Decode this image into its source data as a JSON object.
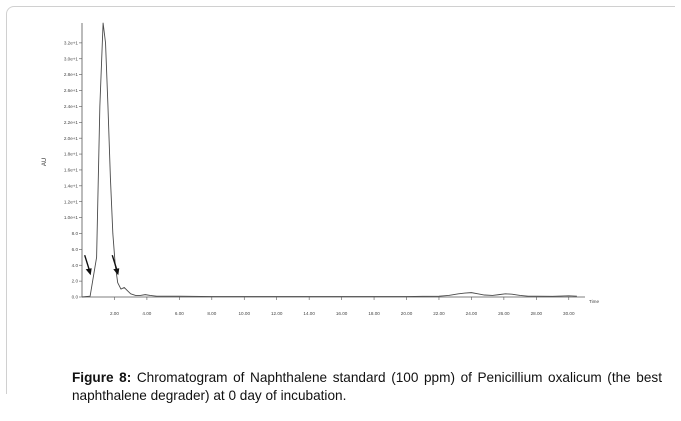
{
  "figure": {
    "label": "Figure 8:",
    "text": " Chromatogram of Naphthalene standard (100 ppm) of Penicillium oxalicum (the best naphthalene degrader) at 0 day of incubation."
  },
  "chart_data": {
    "type": "line",
    "ylabel": "AU",
    "xlabel": "Time",
    "xlim": [
      0,
      31
    ],
    "ylim": [
      0,
      3.4
    ],
    "x_ticks": [
      "2.00",
      "4.00",
      "6.00",
      "8.00",
      "10.00",
      "12.00",
      "14.00",
      "16.00",
      "18.00",
      "20.00",
      "22.00",
      "24.00",
      "26.00",
      "28.00",
      "30.00"
    ],
    "y_ticks": [
      "0.0",
      "2.0",
      "4.0",
      "6.0",
      "8.0",
      "1.0e+1",
      "1.2e+1",
      "1.4e+1",
      "1.6e+1",
      "1.8e+1",
      "2.0e+1",
      "2.2e+1",
      "2.4e+1",
      "2.6e+1",
      "2.8e+1",
      "3.0e+1",
      "3.2e+1"
    ],
    "series": [
      {
        "x": [
          0,
          0.5,
          0.9,
          1.1,
          1.3,
          1.45,
          1.6,
          1.75,
          1.9,
          2.05,
          2.2,
          2.4,
          2.6,
          2.8,
          3.0,
          3.3,
          3.6,
          3.9,
          4.2,
          4.6,
          5,
          6,
          8,
          10,
          12,
          14,
          16,
          18,
          20,
          21,
          22,
          22.6,
          23.2,
          23.6,
          24,
          24.4,
          24.8,
          25.3,
          25.7,
          26.1,
          26.5,
          27,
          27.5,
          28,
          29,
          30,
          30.5
        ],
        "y": [
          0,
          0.01,
          0.5,
          2.4,
          3.45,
          3.2,
          2.4,
          1.5,
          0.8,
          0.4,
          0.18,
          0.1,
          0.12,
          0.08,
          0.04,
          0.02,
          0.02,
          0.03,
          0.02,
          0.01,
          0.01,
          0.01,
          0.005,
          0.005,
          0.005,
          0.005,
          0.005,
          0.005,
          0.005,
          0.008,
          0.01,
          0.02,
          0.04,
          0.05,
          0.055,
          0.04,
          0.025,
          0.02,
          0.03,
          0.04,
          0.035,
          0.02,
          0.01,
          0.01,
          0.008,
          0.015,
          0.01
        ]
      }
    ],
    "annotations": [
      {
        "type": "arrow",
        "x": 0.35,
        "y": 0.35
      },
      {
        "type": "arrow",
        "x": 2.05,
        "y": 0.35
      }
    ],
    "grid": false,
    "colors": {
      "line": "#4a4a4a",
      "axis": "#555555",
      "arrow": "#111111"
    }
  }
}
